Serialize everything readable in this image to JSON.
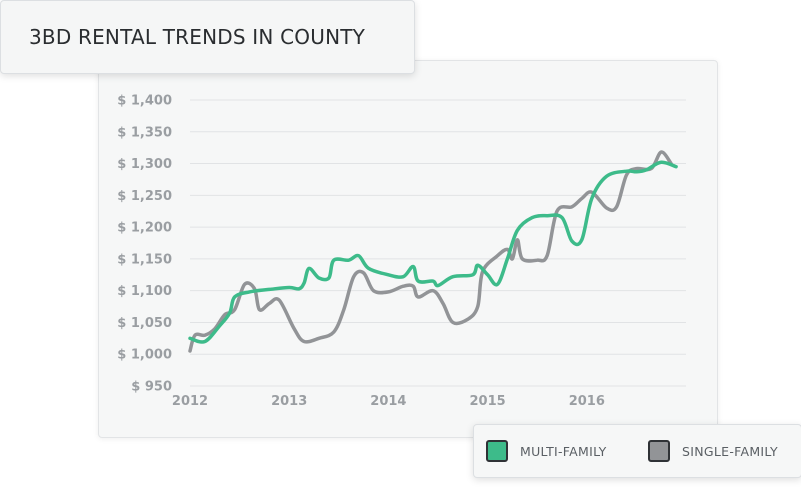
{
  "title": "3BD RENTAL TRENDS IN COUNTY",
  "chart_data": {
    "type": "line",
    "title": "3BD RENTAL TRENDS IN COUNTY",
    "xlabel": "",
    "ylabel": "",
    "xlim": [
      2012.0,
      2017.0
    ],
    "ylim": [
      950,
      1400
    ],
    "x_ticks": [
      2012,
      2013,
      2014,
      2015,
      2016
    ],
    "x_tick_labels": [
      "2012",
      "2013",
      "2014",
      "2015",
      "2016"
    ],
    "y_ticks": [
      950,
      1000,
      1050,
      1100,
      1150,
      1200,
      1250,
      1300,
      1350,
      1400
    ],
    "y_tick_labels": [
      "$ 950",
      "$ 1,000",
      "$ 1,050",
      "$ 1,100",
      "$ 1,150",
      "$ 1,200",
      "$ 1,250",
      "$ 1,300",
      "$ 1,350",
      "$ 1,400"
    ],
    "grid": true,
    "legend_position": "bottom-right",
    "series": [
      {
        "name": "MULTI-FAMILY",
        "color": "#3dbb8a",
        "points": [
          [
            2012.0,
            1025
          ],
          [
            2012.15,
            1020
          ],
          [
            2012.3,
            1045
          ],
          [
            2012.4,
            1065
          ],
          [
            2012.45,
            1090
          ],
          [
            2012.6,
            1098
          ],
          [
            2012.8,
            1102
          ],
          [
            2013.0,
            1105
          ],
          [
            2013.1,
            1103
          ],
          [
            2013.15,
            1112
          ],
          [
            2013.2,
            1135
          ],
          [
            2013.3,
            1120
          ],
          [
            2013.4,
            1120
          ],
          [
            2013.45,
            1148
          ],
          [
            2013.6,
            1148
          ],
          [
            2013.7,
            1155
          ],
          [
            2013.8,
            1135
          ],
          [
            2014.0,
            1125
          ],
          [
            2014.15,
            1122
          ],
          [
            2014.25,
            1138
          ],
          [
            2014.3,
            1115
          ],
          [
            2014.45,
            1115
          ],
          [
            2014.5,
            1108
          ],
          [
            2014.65,
            1122
          ],
          [
            2014.85,
            1125
          ],
          [
            2014.9,
            1140
          ],
          [
            2015.0,
            1125
          ],
          [
            2015.1,
            1110
          ],
          [
            2015.2,
            1150
          ],
          [
            2015.3,
            1195
          ],
          [
            2015.45,
            1215
          ],
          [
            2015.6,
            1218
          ],
          [
            2015.75,
            1215
          ],
          [
            2015.85,
            1178
          ],
          [
            2015.95,
            1180
          ],
          [
            2016.05,
            1245
          ],
          [
            2016.2,
            1280
          ],
          [
            2016.4,
            1288
          ],
          [
            2016.5,
            1287
          ],
          [
            2016.6,
            1290
          ],
          [
            2016.75,
            1302
          ],
          [
            2016.9,
            1295
          ]
        ]
      },
      {
        "name": "SINGLE-FAMILY",
        "color": "#929497",
        "points": [
          [
            2012.0,
            1005
          ],
          [
            2012.05,
            1030
          ],
          [
            2012.15,
            1030
          ],
          [
            2012.25,
            1040
          ],
          [
            2012.35,
            1062
          ],
          [
            2012.45,
            1070
          ],
          [
            2012.55,
            1110
          ],
          [
            2012.65,
            1103
          ],
          [
            2012.7,
            1070
          ],
          [
            2012.8,
            1080
          ],
          [
            2012.9,
            1085
          ],
          [
            2013.05,
            1040
          ],
          [
            2013.15,
            1020
          ],
          [
            2013.3,
            1025
          ],
          [
            2013.45,
            1035
          ],
          [
            2013.55,
            1070
          ],
          [
            2013.65,
            1122
          ],
          [
            2013.75,
            1128
          ],
          [
            2013.85,
            1100
          ],
          [
            2014.0,
            1098
          ],
          [
            2014.15,
            1107
          ],
          [
            2014.25,
            1107
          ],
          [
            2014.3,
            1090
          ],
          [
            2014.45,
            1100
          ],
          [
            2014.55,
            1080
          ],
          [
            2014.65,
            1050
          ],
          [
            2014.8,
            1055
          ],
          [
            2014.9,
            1075
          ],
          [
            2014.95,
            1130
          ],
          [
            2015.1,
            1155
          ],
          [
            2015.2,
            1165
          ],
          [
            2015.25,
            1150
          ],
          [
            2015.3,
            1180
          ],
          [
            2015.35,
            1150
          ],
          [
            2015.5,
            1148
          ],
          [
            2015.6,
            1155
          ],
          [
            2015.7,
            1225
          ],
          [
            2015.85,
            1232
          ],
          [
            2015.95,
            1245
          ],
          [
            2016.05,
            1255
          ],
          [
            2016.2,
            1230
          ],
          [
            2016.3,
            1232
          ],
          [
            2016.4,
            1282
          ],
          [
            2016.5,
            1292
          ],
          [
            2016.65,
            1292
          ],
          [
            2016.75,
            1318
          ],
          [
            2016.85,
            1300
          ]
        ]
      }
    ]
  },
  "legend": {
    "items": [
      {
        "label": "MULTI-FAMILY",
        "color": "#3dbb8a"
      },
      {
        "label": "SINGLE-FAMILY",
        "color": "#929497"
      }
    ]
  }
}
